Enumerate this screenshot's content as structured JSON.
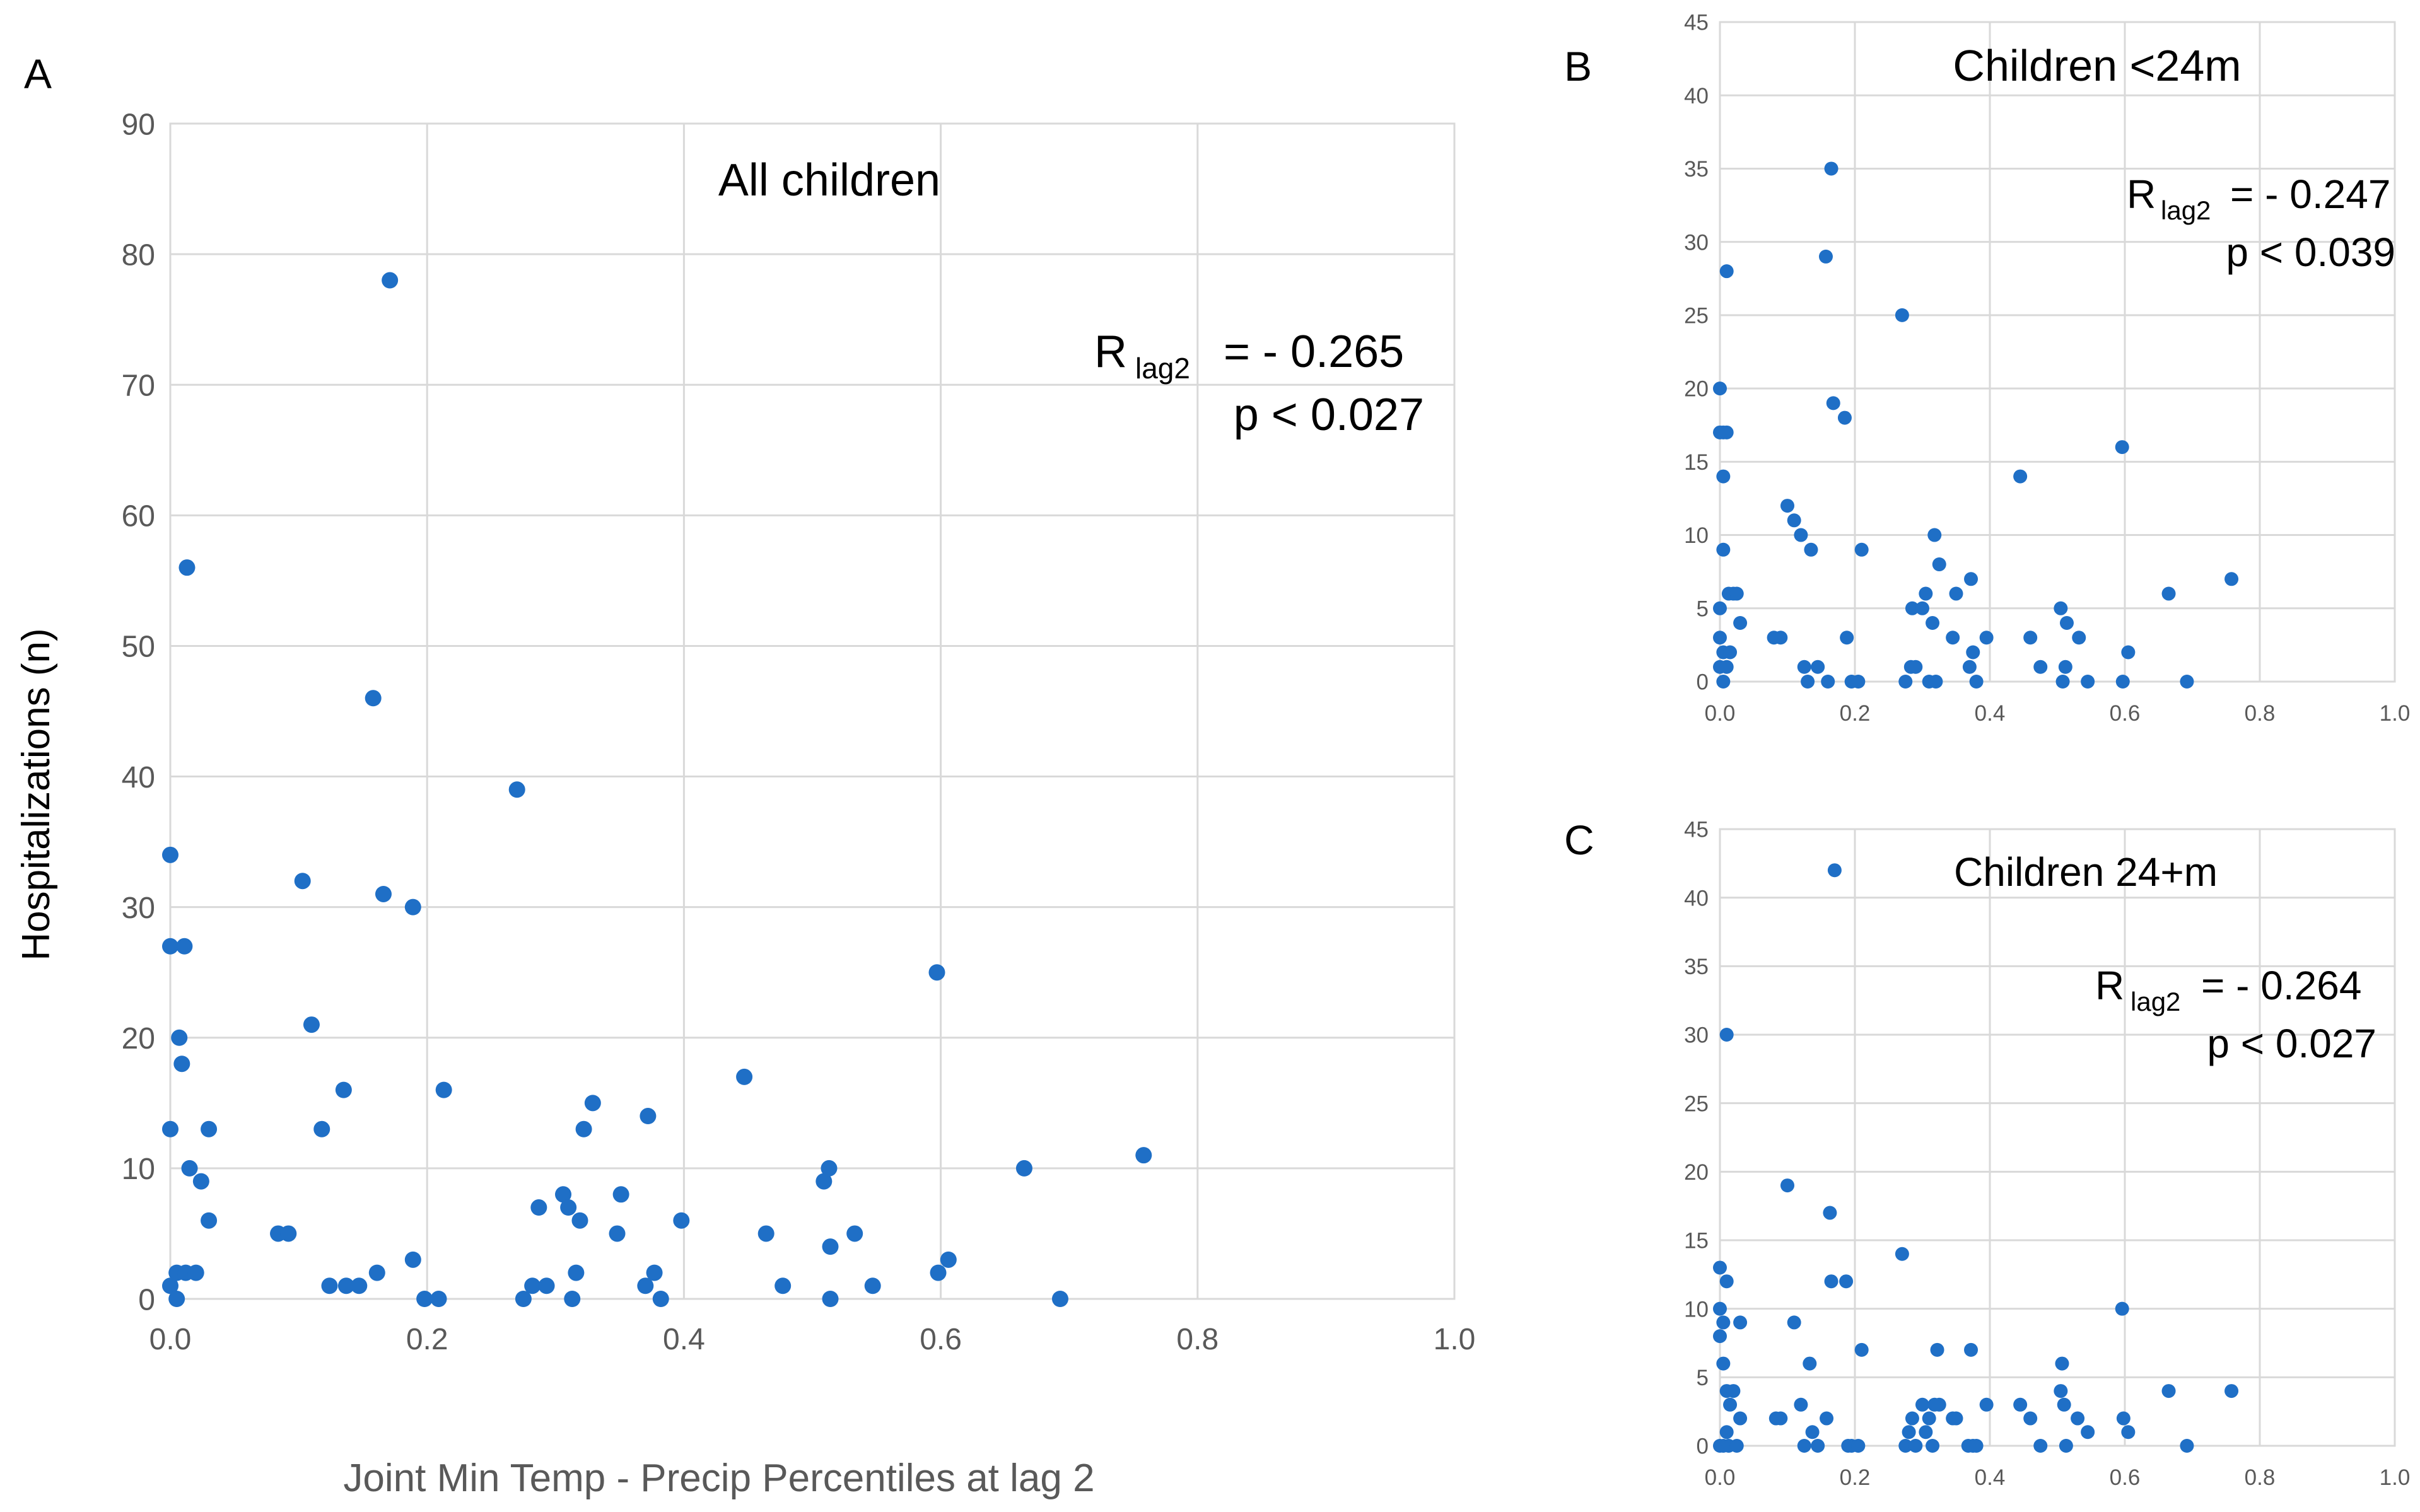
{
  "colors": {
    "marker": "#1f6fc6",
    "grid": "#d9d9d9",
    "tick_text": "#595959"
  },
  "panels": [
    {
      "key": "A",
      "letter": "A",
      "title": "All children",
      "r_main": "R",
      "r_sub": "lag2",
      "r_value": "= - 0.265",
      "p_text": "p < 0.027"
    },
    {
      "key": "B",
      "letter": "B",
      "title": "Children <24m",
      "r_main": "R",
      "r_sub": "lag2",
      "r_value": "= - 0.247",
      "p_text": "p < 0.039"
    },
    {
      "key": "C",
      "letter": "C",
      "title": "Children 24+m",
      "r_main": "R",
      "r_sub": "lag2",
      "r_value": "= - 0.264",
      "p_text": "p < 0.027"
    }
  ],
  "axis_labels": {
    "x": "Joint Min Temp - Precip Percentiles at lag 2",
    "y": "Hospitalizations (n)"
  },
  "chart_data": [
    {
      "type": "scatter",
      "panel": "A",
      "title": "All children",
      "xlabel": "Joint Min Temp - Precip Percentiles at lag 2",
      "ylabel": "Hospitalizations (n)",
      "xlim": [
        0,
        1
      ],
      "ylim": [
        0,
        90
      ],
      "xticks": [
        0,
        0.2,
        0.4,
        0.6,
        0.8,
        1.0
      ],
      "xtick_labels": [
        "0.0",
        "0.2",
        "0.4",
        "0.6",
        "0.8",
        "1.0"
      ],
      "yticks": [
        0,
        10,
        20,
        30,
        40,
        50,
        60,
        70,
        80,
        90
      ],
      "ytick_labels": [
        "0",
        "10",
        "20",
        "30",
        "40",
        "50",
        "60",
        "70",
        "80",
        "90"
      ],
      "annotation": "R lag2 = - 0.265, p < 0.027",
      "points": [
        [
          0.0,
          34
        ],
        [
          0.0,
          27
        ],
        [
          0.0,
          13
        ],
        [
          0.0,
          1
        ],
        [
          0.005,
          2
        ],
        [
          0.005,
          0
        ],
        [
          0.007,
          20
        ],
        [
          0.009,
          18
        ],
        [
          0.011,
          27
        ],
        [
          0.013,
          56
        ],
        [
          0.015,
          10
        ],
        [
          0.012,
          2
        ],
        [
          0.02,
          2
        ],
        [
          0.024,
          9
        ],
        [
          0.03,
          13
        ],
        [
          0.03,
          6
        ],
        [
          0.084,
          5
        ],
        [
          0.092,
          5
        ],
        [
          0.103,
          32
        ],
        [
          0.11,
          21
        ],
        [
          0.118,
          13
        ],
        [
          0.124,
          1
        ],
        [
          0.135,
          16
        ],
        [
          0.137,
          1
        ],
        [
          0.147,
          1
        ],
        [
          0.158,
          46
        ],
        [
          0.161,
          2
        ],
        [
          0.166,
          31
        ],
        [
          0.171,
          78
        ],
        [
          0.189,
          30
        ],
        [
          0.189,
          3
        ],
        [
          0.198,
          0
        ],
        [
          0.209,
          0
        ],
        [
          0.213,
          16
        ],
        [
          0.27,
          39
        ],
        [
          0.275,
          0
        ],
        [
          0.282,
          1
        ],
        [
          0.287,
          7
        ],
        [
          0.293,
          1
        ],
        [
          0.306,
          8
        ],
        [
          0.31,
          7
        ],
        [
          0.313,
          0
        ],
        [
          0.316,
          2
        ],
        [
          0.319,
          6
        ],
        [
          0.322,
          13
        ],
        [
          0.329,
          15
        ],
        [
          0.348,
          5
        ],
        [
          0.351,
          8
        ],
        [
          0.37,
          1
        ],
        [
          0.372,
          14
        ],
        [
          0.377,
          2
        ],
        [
          0.382,
          0
        ],
        [
          0.398,
          6
        ],
        [
          0.447,
          17
        ],
        [
          0.464,
          5
        ],
        [
          0.477,
          1
        ],
        [
          0.509,
          9
        ],
        [
          0.513,
          10
        ],
        [
          0.514,
          4
        ],
        [
          0.514,
          0
        ],
        [
          0.533,
          5
        ],
        [
          0.547,
          1
        ],
        [
          0.597,
          25
        ],
        [
          0.598,
          2
        ],
        [
          0.606,
          3
        ],
        [
          0.665,
          10
        ],
        [
          0.693,
          0
        ],
        [
          0.758,
          11
        ]
      ]
    },
    {
      "type": "scatter",
      "panel": "B",
      "title": "Children <24m",
      "xlim": [
        0,
        1
      ],
      "ylim": [
        0,
        45
      ],
      "xticks": [
        0,
        0.2,
        0.4,
        0.6,
        0.8,
        1.0
      ],
      "xtick_labels": [
        "0.0",
        "0.2",
        "0.4",
        "0.6",
        "0.8",
        "1.0"
      ],
      "yticks": [
        0,
        5,
        10,
        15,
        20,
        25,
        30,
        35,
        40,
        45
      ],
      "ytick_labels": [
        "0",
        "5",
        "10",
        "15",
        "20",
        "25",
        "30",
        "35",
        "40",
        "45"
      ],
      "annotation": "R lag2 = - 0.247, p < 0.039",
      "points": [
        [
          0.0,
          20
        ],
        [
          0.0,
          17
        ],
        [
          0.0,
          5
        ],
        [
          0.0,
          3
        ],
        [
          0.0,
          1
        ],
        [
          0.005,
          17
        ],
        [
          0.005,
          14
        ],
        [
          0.005,
          9
        ],
        [
          0.005,
          2
        ],
        [
          0.005,
          0
        ],
        [
          0.01,
          28
        ],
        [
          0.01,
          17
        ],
        [
          0.01,
          1
        ],
        [
          0.013,
          6
        ],
        [
          0.015,
          2
        ],
        [
          0.02,
          6
        ],
        [
          0.025,
          6
        ],
        [
          0.03,
          4
        ],
        [
          0.08,
          3
        ],
        [
          0.09,
          3
        ],
        [
          0.1,
          12
        ],
        [
          0.11,
          11
        ],
        [
          0.12,
          10
        ],
        [
          0.125,
          1
        ],
        [
          0.13,
          0
        ],
        [
          0.135,
          9
        ],
        [
          0.145,
          1
        ],
        [
          0.157,
          29
        ],
        [
          0.16,
          0
        ],
        [
          0.165,
          35
        ],
        [
          0.168,
          19
        ],
        [
          0.185,
          18
        ],
        [
          0.188,
          3
        ],
        [
          0.195,
          0
        ],
        [
          0.205,
          0
        ],
        [
          0.21,
          9
        ],
        [
          0.27,
          25
        ],
        [
          0.275,
          0
        ],
        [
          0.283,
          1
        ],
        [
          0.285,
          5
        ],
        [
          0.29,
          1
        ],
        [
          0.3,
          5
        ],
        [
          0.305,
          6
        ],
        [
          0.31,
          0
        ],
        [
          0.315,
          4
        ],
        [
          0.318,
          10
        ],
        [
          0.32,
          0
        ],
        [
          0.325,
          8
        ],
        [
          0.345,
          3
        ],
        [
          0.35,
          6
        ],
        [
          0.37,
          1
        ],
        [
          0.372,
          7
        ],
        [
          0.375,
          2
        ],
        [
          0.38,
          0
        ],
        [
          0.395,
          3
        ],
        [
          0.445,
          14
        ],
        [
          0.46,
          3
        ],
        [
          0.475,
          1
        ],
        [
          0.505,
          5
        ],
        [
          0.508,
          0
        ],
        [
          0.512,
          1
        ],
        [
          0.514,
          4
        ],
        [
          0.532,
          3
        ],
        [
          0.545,
          0
        ],
        [
          0.596,
          16
        ],
        [
          0.597,
          0
        ],
        [
          0.605,
          2
        ],
        [
          0.665,
          6
        ],
        [
          0.692,
          0
        ],
        [
          0.758,
          7
        ]
      ]
    },
    {
      "type": "scatter",
      "panel": "C",
      "title": "Children 24+m",
      "xlim": [
        0,
        1
      ],
      "ylim": [
        0,
        45
      ],
      "xticks": [
        0,
        0.2,
        0.4,
        0.6,
        0.8,
        1.0
      ],
      "xtick_labels": [
        "0.0",
        "0.2",
        "0.4",
        "0.6",
        "0.8",
        "1.0"
      ],
      "yticks": [
        0,
        5,
        10,
        15,
        20,
        25,
        30,
        35,
        40,
        45
      ],
      "ytick_labels": [
        "0",
        "5",
        "10",
        "15",
        "20",
        "25",
        "30",
        "35",
        "40",
        "45"
      ],
      "annotation": "R lag2 = - 0.264, p < 0.027",
      "points": [
        [
          0.0,
          13
        ],
        [
          0.0,
          10
        ],
        [
          0.0,
          8
        ],
        [
          0.0,
          0
        ],
        [
          0.005,
          9
        ],
        [
          0.005,
          6
        ],
        [
          0.005,
          0
        ],
        [
          0.01,
          30
        ],
        [
          0.01,
          12
        ],
        [
          0.01,
          4
        ],
        [
          0.01,
          1
        ],
        [
          0.013,
          0
        ],
        [
          0.015,
          3
        ],
        [
          0.02,
          4
        ],
        [
          0.025,
          0
        ],
        [
          0.03,
          9
        ],
        [
          0.03,
          2
        ],
        [
          0.083,
          2
        ],
        [
          0.09,
          2
        ],
        [
          0.1,
          19
        ],
        [
          0.11,
          9
        ],
        [
          0.12,
          3
        ],
        [
          0.125,
          0
        ],
        [
          0.133,
          6
        ],
        [
          0.137,
          1
        ],
        [
          0.145,
          0
        ],
        [
          0.158,
          2
        ],
        [
          0.163,
          17
        ],
        [
          0.165,
          12
        ],
        [
          0.17,
          42
        ],
        [
          0.187,
          12
        ],
        [
          0.19,
          0
        ],
        [
          0.195,
          0
        ],
        [
          0.205,
          0
        ],
        [
          0.21,
          7
        ],
        [
          0.27,
          14
        ],
        [
          0.275,
          0
        ],
        [
          0.28,
          1
        ],
        [
          0.285,
          2
        ],
        [
          0.29,
          0
        ],
        [
          0.3,
          3
        ],
        [
          0.305,
          1
        ],
        [
          0.31,
          2
        ],
        [
          0.315,
          0
        ],
        [
          0.318,
          3
        ],
        [
          0.322,
          7
        ],
        [
          0.325,
          3
        ],
        [
          0.345,
          2
        ],
        [
          0.35,
          2
        ],
        [
          0.368,
          0
        ],
        [
          0.372,
          7
        ],
        [
          0.375,
          0
        ],
        [
          0.38,
          0
        ],
        [
          0.395,
          3
        ],
        [
          0.445,
          3
        ],
        [
          0.46,
          2
        ],
        [
          0.475,
          0
        ],
        [
          0.505,
          4
        ],
        [
          0.507,
          6
        ],
        [
          0.51,
          3
        ],
        [
          0.513,
          0
        ],
        [
          0.53,
          2
        ],
        [
          0.545,
          1
        ],
        [
          0.596,
          10
        ],
        [
          0.598,
          2
        ],
        [
          0.605,
          1
        ],
        [
          0.665,
          4
        ],
        [
          0.692,
          0
        ],
        [
          0.758,
          4
        ]
      ]
    }
  ]
}
